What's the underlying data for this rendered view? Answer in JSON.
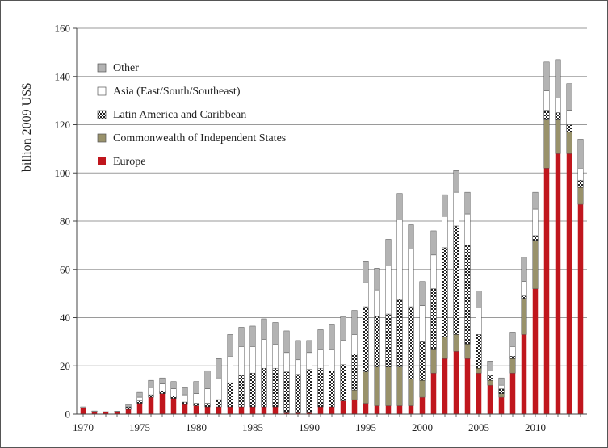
{
  "chart_data": {
    "type": "bar",
    "stacked": true,
    "title": "",
    "xlabel": "",
    "ylabel": "billion 2009 US$",
    "ylim": [
      0,
      160
    ],
    "yticks": [
      0,
      20,
      40,
      60,
      80,
      100,
      120,
      140,
      160
    ],
    "xticks": [
      1970,
      1975,
      1980,
      1985,
      1990,
      1995,
      2000,
      2005,
      2010
    ],
    "grid": true,
    "legend_position": "top-left",
    "x": [
      1970,
      1971,
      1972,
      1973,
      1974,
      1975,
      1976,
      1977,
      1978,
      1979,
      1980,
      1981,
      1982,
      1983,
      1984,
      1985,
      1986,
      1987,
      1988,
      1989,
      1990,
      1991,
      1992,
      1993,
      1994,
      1995,
      1996,
      1997,
      1998,
      1999,
      2000,
      2001,
      2002,
      2003,
      2004,
      2005,
      2006,
      2007,
      2008,
      2009,
      2010,
      2011,
      2012,
      2013,
      2014
    ],
    "series": [
      {
        "name": "Europe",
        "color": "#c0161d",
        "pattern": "solid",
        "values": [
          2.5,
          1,
          0.8,
          1,
          2,
          4.5,
          7,
          8.5,
          6.5,
          4,
          3.5,
          3,
          3,
          3,
          3,
          3,
          3,
          3,
          0.5,
          0.5,
          0.5,
          3,
          3,
          5.5,
          6,
          4.5,
          3.5,
          3.5,
          3.5,
          3.5,
          7,
          17,
          23,
          26,
          23,
          17,
          12,
          7,
          17,
          33,
          52,
          102,
          108,
          108,
          87
        ]
      },
      {
        "name": "Commonwealth of Independent States",
        "color": "#99926b",
        "pattern": "solid",
        "values": [
          0,
          0,
          0,
          0,
          0,
          0,
          0,
          0,
          0,
          0,
          0,
          0,
          0,
          0,
          0,
          0,
          0,
          0,
          0,
          0,
          0,
          0,
          0,
          0,
          4,
          13,
          16,
          16,
          16,
          11,
          7,
          10,
          9,
          7,
          6,
          2,
          2,
          1.5,
          6,
          15,
          20,
          20,
          14,
          9,
          7
        ]
      },
      {
        "name": "Latin America and Caribbean",
        "color": "#2a2a2a",
        "pattern": "checker",
        "values": [
          0,
          0,
          0,
          0,
          1,
          1,
          1,
          1,
          1,
          1,
          1,
          1.5,
          3,
          10,
          13,
          14,
          16,
          16,
          17,
          16,
          18,
          16,
          15,
          15,
          15,
          27,
          21,
          22,
          28,
          30,
          16,
          25,
          37,
          45,
          41,
          14,
          2,
          2,
          1,
          1,
          2,
          4,
          3,
          3,
          3
        ]
      },
      {
        "name": "Asia (East/South/Southeast)",
        "color": "#ffffff",
        "pattern": "solid",
        "values": [
          0,
          0,
          0,
          0,
          0,
          1.5,
          3,
          3,
          3,
          3,
          4,
          6,
          9,
          11,
          12,
          11,
          12,
          10,
          8,
          6,
          7,
          8,
          9,
          10,
          8,
          10,
          11,
          20,
          33,
          24,
          15,
          14,
          13,
          14,
          13,
          11,
          2,
          1.5,
          4,
          6,
          11,
          8,
          6,
          6,
          5
        ]
      },
      {
        "name": "Other",
        "color": "#b3b3b3",
        "pattern": "solid",
        "values": [
          0.5,
          0.3,
          0.2,
          0.2,
          1,
          2,
          3,
          2.5,
          3,
          3,
          5,
          7.5,
          8,
          9,
          8,
          8.5,
          8.5,
          9,
          9,
          8,
          5,
          8,
          10,
          10,
          10,
          9,
          9,
          11,
          11,
          10,
          10,
          10,
          9,
          9,
          9,
          7,
          4,
          3,
          6,
          10,
          7,
          12,
          16,
          11,
          12
        ]
      }
    ],
    "legend_order": [
      "Other",
      "Asia (East/South/Southeast)",
      "Latin America and Caribbean",
      "Commonwealth of Independent States",
      "Europe"
    ]
  }
}
